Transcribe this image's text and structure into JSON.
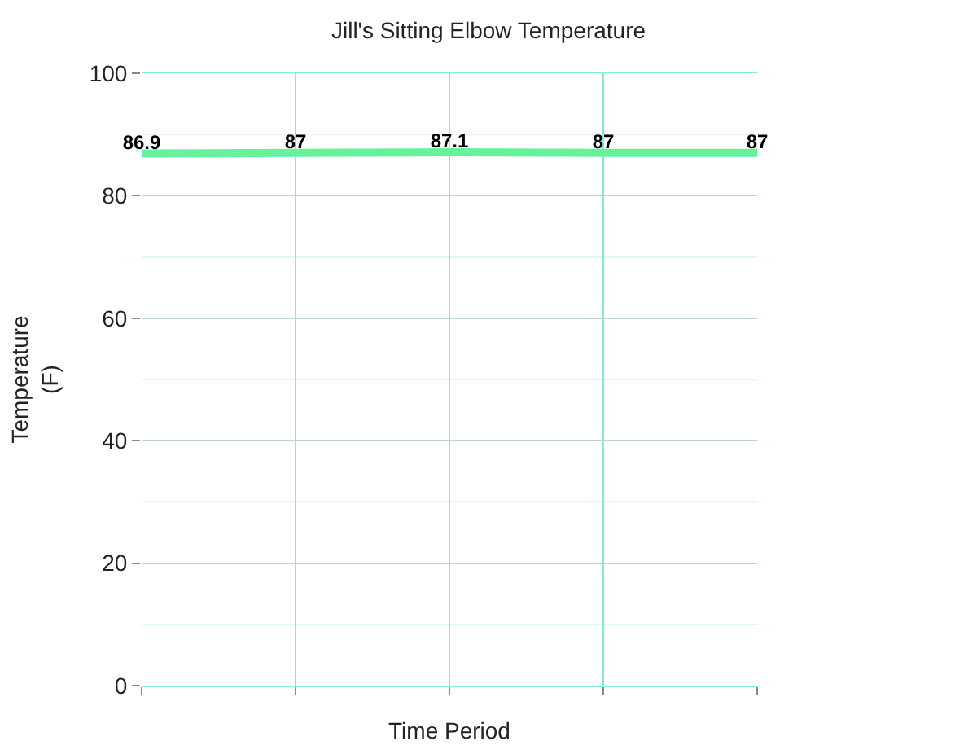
{
  "chart_data": {
    "type": "line",
    "title": "Jill's Sitting Elbow Temperature",
    "xlabel": "Time Period",
    "ylabel": "Temperature\n(F)",
    "categories": [
      null,
      null,
      null,
      null,
      null
    ],
    "series": [
      {
        "color": "#66f29c",
        "values": [
          86.9,
          87,
          87.1,
          87,
          87
        ]
      }
    ],
    "ylim": [
      0,
      100
    ],
    "yticks": [
      0,
      20,
      40,
      60,
      80,
      100
    ],
    "grid": true,
    "data_labels": true,
    "marker": "none",
    "line_style": "solid"
  }
}
